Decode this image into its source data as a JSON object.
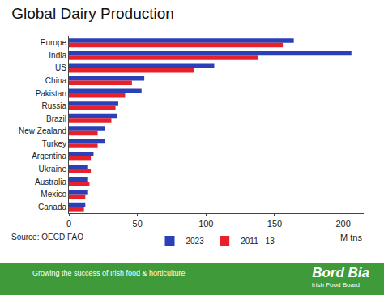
{
  "chart_data": {
    "type": "bar",
    "orientation": "horizontal",
    "title": "Global Dairy Production",
    "x_label": "M tns",
    "source": "Source: OECD FAO",
    "footer_text": "Growing the success of Irish food & horticulture",
    "logo_text": "Bord Bia",
    "logo_subtext": "Irish Food Board",
    "categories": [
      "Europe",
      "India",
      "US",
      "China",
      "Pakistan",
      "Russia",
      "Brazil",
      "New Zealand",
      "Turkey",
      "Argentina",
      "Ukraine",
      "Australia",
      "Mexico",
      "Canada"
    ],
    "series": [
      {
        "name": "2023",
        "color": "#2b3fb8",
        "values": [
          164,
          206,
          106,
          55,
          53,
          36,
          35,
          26,
          26,
          18,
          14,
          14,
          14,
          12
        ]
      },
      {
        "name": "2011 - 13",
        "color": "#e8202a",
        "values": [
          156,
          138,
          91,
          46,
          41,
          34,
          31,
          21,
          21,
          16,
          16,
          15,
          12,
          11
        ]
      }
    ],
    "xlim": [
      0,
      215
    ],
    "xticks": [
      0,
      50,
      100,
      150,
      200
    ],
    "grid": false,
    "legend": "bottom"
  }
}
